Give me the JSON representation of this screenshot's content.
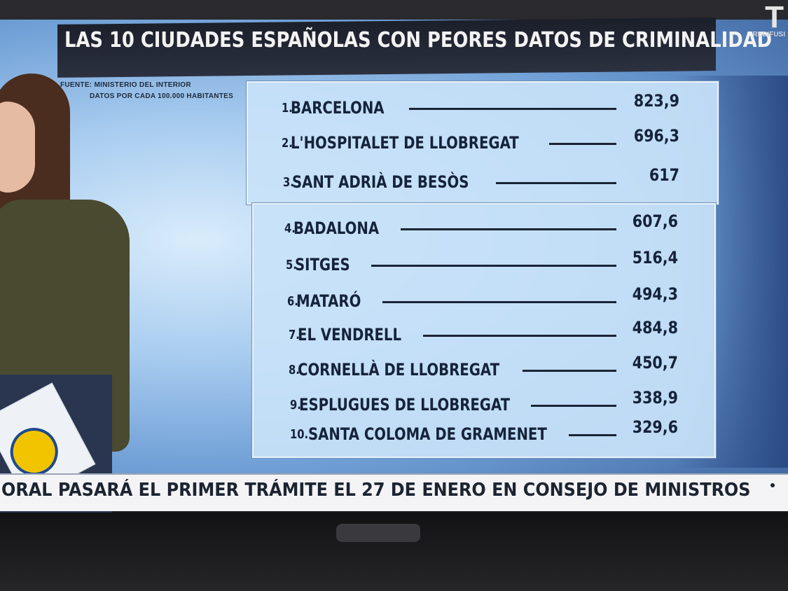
{
  "title": "LAS 10 CIUDADES ESPAÑOLAS CON PEORES DATOS DE CRIMINALIDAD",
  "source_line_1": "FUENTE: MINISTERIO DEL INTERIOR",
  "source_line_2": "DATOS POR CADA 100.000 HABITANTES",
  "channel": {
    "logo": "T",
    "sub": "REDIFUSI"
  },
  "ranking": [
    {
      "rank": "1.",
      "city": "BARCELONA",
      "value": "823,9"
    },
    {
      "rank": "2.",
      "city": "L'HOSPITALET DE LLOBREGAT",
      "value": "696,3"
    },
    {
      "rank": "3.",
      "city": "SANT ADRIÀ DE BESÒS",
      "value": "617"
    },
    {
      "rank": "4.",
      "city": "BADALONA",
      "value": "607,6"
    },
    {
      "rank": "5.",
      "city": "SITGES",
      "value": "516,4"
    },
    {
      "rank": "6.",
      "city": "MATARÓ",
      "value": "494,3"
    },
    {
      "rank": "7.",
      "city": "EL VENDRELL",
      "value": "484,8"
    },
    {
      "rank": "8.",
      "city": "CORNELLÀ DE LLOBREGAT",
      "value": "450,7"
    },
    {
      "rank": "9.",
      "city": "ESPLUGUES DE LLOBREGAT",
      "value": "338,9"
    },
    {
      "rank": "10.",
      "city": "SANTA COLOMA DE GRAMENET",
      "value": "329,6"
    }
  ],
  "ticker": "ORAL PASARÁ EL PRIMER TRÁMITE EL 27 DE ENERO EN CONSEJO DE MINISTROS"
}
